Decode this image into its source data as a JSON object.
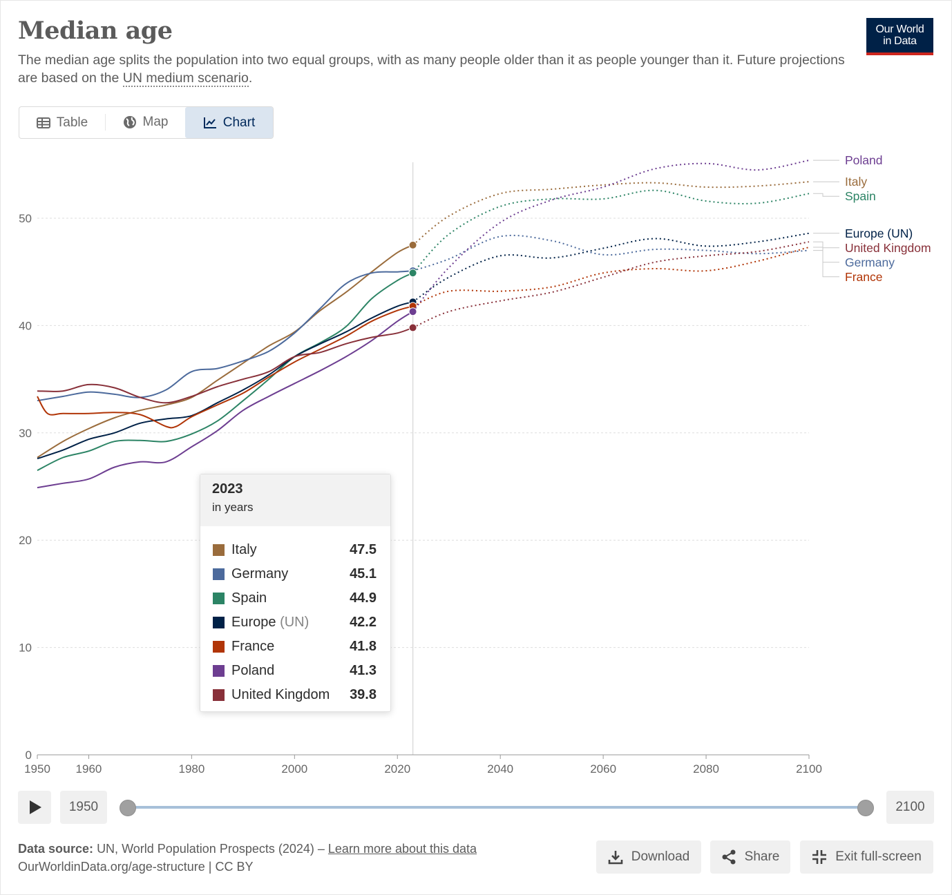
{
  "header": {
    "title": "Median age",
    "subtitle_text": "The median age splits the population into two equal groups, with as many people older than it as people younger than it. Future projections are based on the",
    "subtitle_link": "UN medium scenario",
    "subtitle_end": ".",
    "logo_line1": "Our World",
    "logo_line2": "in Data"
  },
  "tabs": [
    {
      "label": "Table",
      "icon": "table-icon"
    },
    {
      "label": "Map",
      "icon": "globe-icon"
    },
    {
      "label": "Chart",
      "icon": "line-chart-icon",
      "active": true
    }
  ],
  "chart_data": {
    "type": "line",
    "title": "Median age",
    "xlim": [
      1950,
      2100
    ],
    "ylim": [
      0,
      55
    ],
    "x_ticks": [
      1950,
      1960,
      1980,
      2000,
      2020,
      2040,
      2060,
      2080,
      2100
    ],
    "y_ticks": [
      0,
      10,
      20,
      30,
      40,
      50
    ],
    "grid": "horizontal dotted",
    "hover_year": 2023,
    "projection_start": 2023,
    "series": [
      {
        "name": "Italy",
        "color": "#9a6c3c",
        "x": [
          1950,
          1955,
          1960,
          1965,
          1970,
          1975,
          1980,
          1985,
          1990,
          1995,
          2000,
          2005,
          2010,
          2015,
          2020,
          2023,
          2030,
          2040,
          2050,
          2060,
          2070,
          2080,
          2090,
          2100
        ],
        "y": [
          27.7,
          29.2,
          30.4,
          31.4,
          32.1,
          32.6,
          33.3,
          34.9,
          36.5,
          38.1,
          39.4,
          41.4,
          43.1,
          45.0,
          46.8,
          47.5,
          50.2,
          52.3,
          52.7,
          53.1,
          53.3,
          52.9,
          53.0,
          53.4
        ]
      },
      {
        "name": "Germany",
        "color": "#4c6a9c",
        "x": [
          1950,
          1955,
          1960,
          1965,
          1970,
          1975,
          1980,
          1985,
          1990,
          1995,
          2000,
          2005,
          2010,
          2015,
          2020,
          2023,
          2030,
          2040,
          2050,
          2060,
          2070,
          2080,
          2090,
          2100
        ],
        "y": [
          33.0,
          33.4,
          33.8,
          33.6,
          33.3,
          34.0,
          35.7,
          36.0,
          36.7,
          37.6,
          39.3,
          41.6,
          43.9,
          44.9,
          45.0,
          45.1,
          46.2,
          48.3,
          47.9,
          46.6,
          47.1,
          47.0,
          46.7,
          47.0
        ]
      },
      {
        "name": "Spain",
        "color": "#2c8465",
        "x": [
          1950,
          1955,
          1960,
          1965,
          1970,
          1975,
          1980,
          1985,
          1990,
          1995,
          2000,
          2005,
          2010,
          2015,
          2020,
          2023,
          2030,
          2040,
          2050,
          2060,
          2070,
          2080,
          2090,
          2100
        ],
        "y": [
          26.5,
          27.7,
          28.3,
          29.2,
          29.3,
          29.2,
          29.9,
          31.1,
          33.0,
          35.0,
          37.1,
          38.4,
          39.9,
          42.5,
          44.2,
          44.9,
          48.5,
          51.1,
          51.8,
          51.8,
          52.6,
          51.6,
          51.4,
          52.3
        ]
      },
      {
        "name": "Europe (UN)",
        "color": "#002147",
        "x": [
          1950,
          1955,
          1960,
          1965,
          1970,
          1975,
          1980,
          1985,
          1990,
          1995,
          2000,
          2005,
          2010,
          2015,
          2020,
          2023,
          2030,
          2040,
          2050,
          2060,
          2070,
          2080,
          2090,
          2100
        ],
        "y": [
          27.6,
          28.4,
          29.4,
          30.0,
          30.9,
          31.3,
          31.6,
          32.8,
          34.0,
          35.4,
          37.1,
          38.3,
          39.4,
          40.7,
          41.8,
          42.2,
          44.5,
          46.5,
          46.3,
          47.2,
          48.1,
          47.4,
          47.8,
          48.6
        ]
      },
      {
        "name": "France",
        "color": "#b13507",
        "x": [
          1950,
          1952,
          1955,
          1960,
          1965,
          1970,
          1975,
          1977,
          1980,
          1985,
          1990,
          1995,
          2000,
          2005,
          2010,
          2015,
          2020,
          2023,
          2030,
          2040,
          2050,
          2060,
          2070,
          2080,
          2090,
          2100
        ],
        "y": [
          33.4,
          31.8,
          31.8,
          31.8,
          31.9,
          31.7,
          30.6,
          30.6,
          31.5,
          32.6,
          33.7,
          35.2,
          36.6,
          37.8,
          39.0,
          40.4,
          41.4,
          41.8,
          43.2,
          43.2,
          43.6,
          44.9,
          45.3,
          45.1,
          46.0,
          47.3
        ]
      },
      {
        "name": "Poland",
        "color": "#6d3e91",
        "x": [
          1950,
          1955,
          1960,
          1965,
          1970,
          1975,
          1980,
          1985,
          1990,
          1995,
          2000,
          2005,
          2010,
          2015,
          2020,
          2023,
          2030,
          2040,
          2050,
          2060,
          2070,
          2080,
          2090,
          2100
        ],
        "y": [
          24.9,
          25.3,
          25.7,
          26.8,
          27.3,
          27.3,
          28.7,
          30.2,
          32.1,
          33.4,
          34.6,
          35.8,
          37.1,
          38.6,
          40.4,
          41.3,
          45.4,
          49.6,
          51.7,
          52.9,
          54.6,
          55.1,
          54.5,
          55.4
        ]
      },
      {
        "name": "United Kingdom",
        "color": "#883039",
        "x": [
          1950,
          1955,
          1960,
          1965,
          1970,
          1975,
          1980,
          1985,
          1990,
          1995,
          2000,
          2005,
          2010,
          2015,
          2020,
          2023,
          2030,
          2040,
          2050,
          2060,
          2070,
          2080,
          2090,
          2100
        ],
        "y": [
          33.9,
          33.9,
          34.5,
          34.2,
          33.3,
          32.8,
          33.4,
          34.3,
          35.0,
          35.7,
          37.1,
          37.5,
          38.3,
          38.9,
          39.3,
          39.8,
          41.3,
          42.3,
          43.1,
          44.5,
          45.9,
          46.5,
          46.9,
          47.8
        ]
      }
    ]
  },
  "labels_order": [
    "Poland",
    "Italy",
    "Spain",
    "Europe (UN)",
    "United Kingdom",
    "Germany",
    "France"
  ],
  "tooltip": {
    "year": "2023",
    "unit": "in years",
    "rows": [
      {
        "name": "Italy",
        "value": "47.5",
        "color": "#9a6c3c"
      },
      {
        "name": "Germany",
        "value": "45.1",
        "color": "#4c6a9c"
      },
      {
        "name": "Spain",
        "value": "44.9",
        "color": "#2c8465"
      },
      {
        "name": "Europe",
        "suffix": "(UN)",
        "value": "42.2",
        "color": "#002147"
      },
      {
        "name": "France",
        "value": "41.8",
        "color": "#b13507"
      },
      {
        "name": "Poland",
        "value": "41.3",
        "color": "#6d3e91"
      },
      {
        "name": "United Kingdom",
        "value": "39.8",
        "color": "#883039"
      }
    ]
  },
  "timeline": {
    "start": "1950",
    "end": "2100"
  },
  "footer": {
    "source_label": "Data source:",
    "source_text": "UN, World Population Prospects (2024) –",
    "source_link": "Learn more about this data",
    "url_line": "OurWorldinData.org/age-structure | CC BY",
    "download": "Download",
    "share": "Share",
    "exit": "Exit full-screen"
  }
}
